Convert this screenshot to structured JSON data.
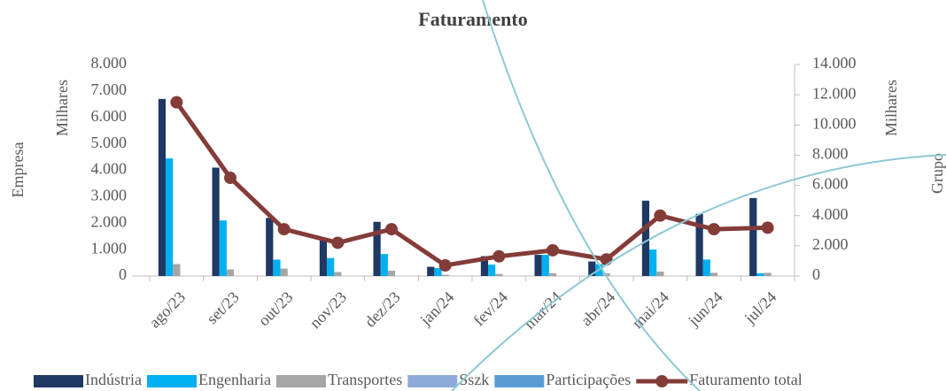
{
  "chart_data": {
    "type": "bar",
    "title": "Faturamento",
    "y_label": "Empresa",
    "y_unit": "Milhares",
    "y2_label": "Grupo",
    "y2_unit": "Milhares",
    "categories": [
      "ago/23",
      "set/23",
      "out/23",
      "nov/23",
      "dez/23",
      "jan/24",
      "fev/24",
      "mar/24",
      "abr/24",
      "mai/24",
      "jun/24",
      "jul/24"
    ],
    "series": [
      {
        "name": "Indústria",
        "color": "#1f3864",
        "type": "bar",
        "values": [
          6700,
          4100,
          2200,
          1350,
          2050,
          350,
          750,
          800,
          550,
          2850,
          2350,
          2950
        ]
      },
      {
        "name": "Engenharia",
        "color": "#00b0f0",
        "type": "bar",
        "values": [
          4450,
          2100,
          620,
          680,
          830,
          300,
          430,
          800,
          450,
          1000,
          620,
          100
        ]
      },
      {
        "name": "Transportes",
        "color": "#a5a5a5",
        "type": "bar",
        "values": [
          450,
          250,
          280,
          150,
          200,
          50,
          80,
          100,
          100,
          170,
          120,
          120
        ]
      },
      {
        "name": "Sszk",
        "color": "#8eaadb",
        "type": "bar",
        "values": [
          0,
          0,
          0,
          0,
          0,
          0,
          0,
          0,
          0,
          0,
          0,
          0
        ]
      },
      {
        "name": "Participações",
        "color": "#5b9bd5",
        "type": "bar",
        "values": [
          0,
          0,
          0,
          0,
          0,
          0,
          0,
          0,
          0,
          0,
          0,
          0
        ]
      },
      {
        "name": "Faturamento total",
        "color": "#843c39",
        "type": "line",
        "axis": "y2",
        "values": [
          11500,
          6500,
          3100,
          2200,
          3100,
          700,
          1300,
          1700,
          1100,
          4000,
          3100,
          3200
        ]
      }
    ],
    "ylim": [
      0,
      8000
    ],
    "yticks": [
      0,
      {
        "value": 1000,
        "label": "1.000"
      },
      {
        "value": 2000,
        "label": "2.000"
      },
      {
        "value": 3000,
        "label": "3.000"
      },
      {
        "value": 4000,
        "label": "4.000"
      },
      {
        "value": 5000,
        "label": "5.000"
      },
      {
        "value": 6000,
        "label": "6.000"
      },
      {
        "value": 7000,
        "label": "7.000"
      },
      {
        "value": 8000,
        "label": "8.000"
      }
    ],
    "y2lim": [
      0,
      14000
    ],
    "y2ticks": [
      0,
      {
        "value": 2000,
        "label": "2.000"
      },
      {
        "value": 4000,
        "label": "4.000"
      },
      {
        "value": 6000,
        "label": "6.000"
      },
      {
        "value": 8000,
        "label": "8.000"
      },
      {
        "value": 10000,
        "label": "10.000"
      },
      {
        "value": 12000,
        "label": "12.000"
      },
      {
        "value": 14000,
        "label": "14.000"
      }
    ],
    "legend": "bottom"
  }
}
